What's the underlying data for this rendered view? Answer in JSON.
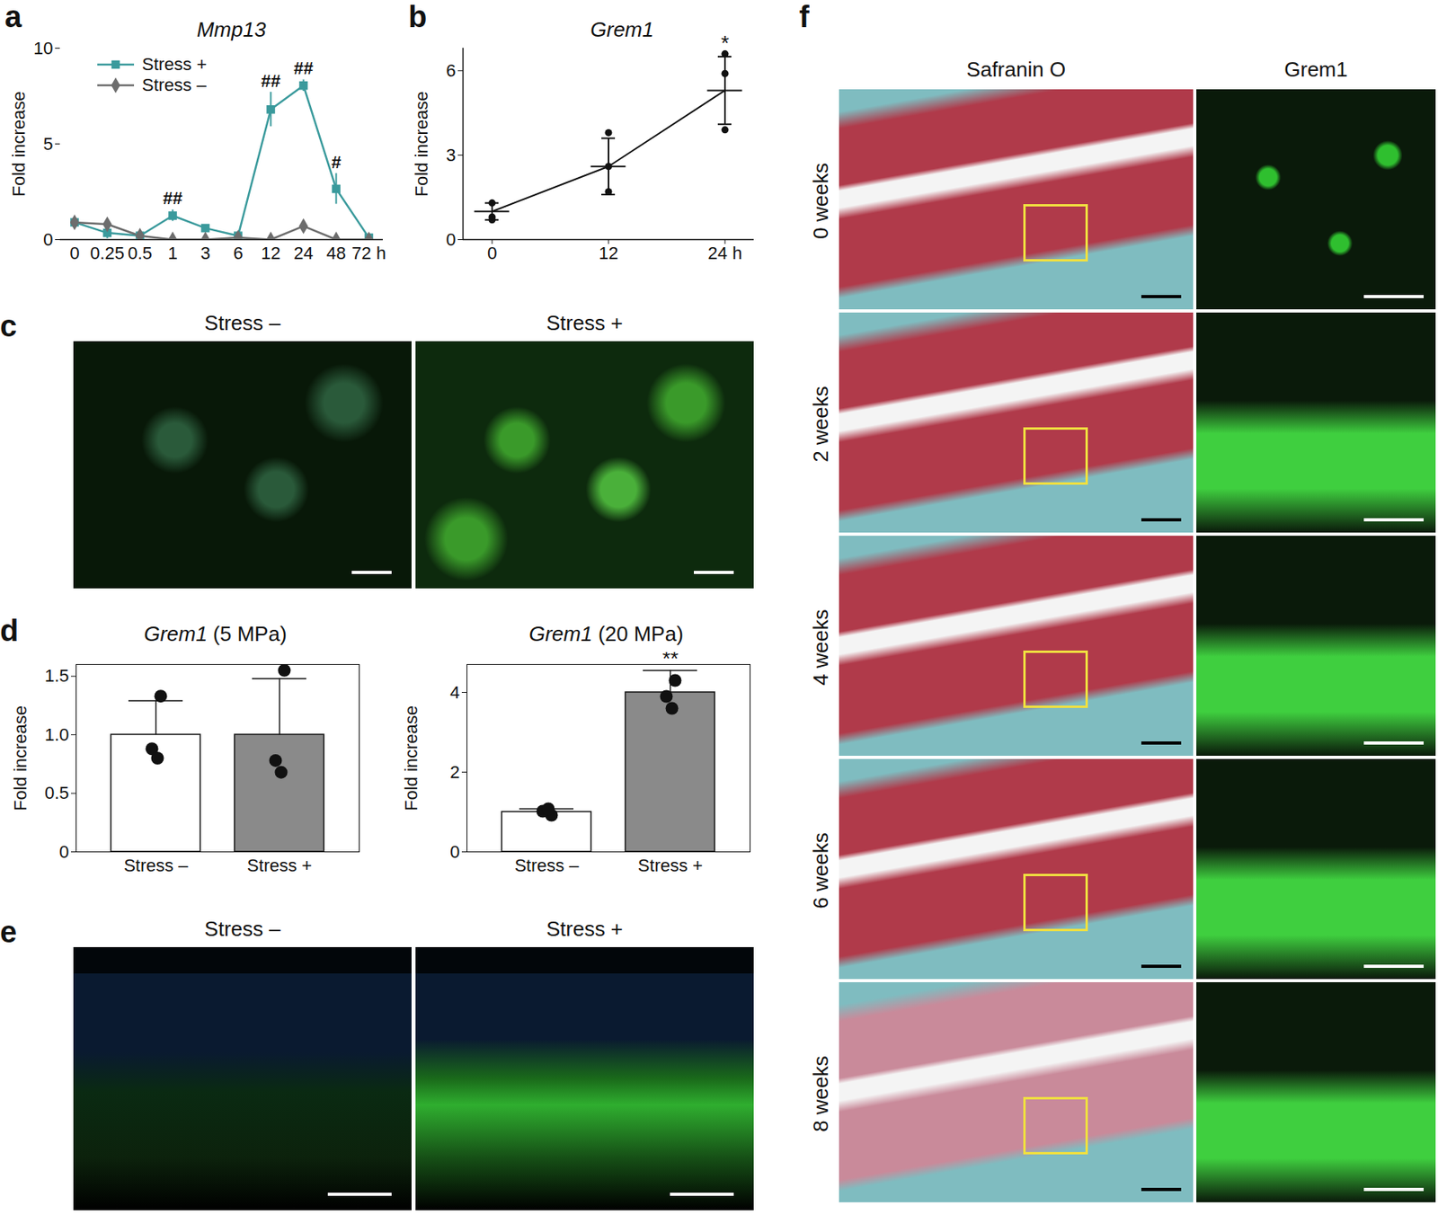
{
  "chart_data": [
    {
      "type": "line",
      "panel": "a",
      "title": "Mmp13",
      "y_label": "Fold increase",
      "categories": [
        "0",
        "0.25",
        "0.5",
        "1",
        "3",
        "6",
        "12",
        "24",
        "48",
        "72 h"
      ],
      "ylim": [
        0,
        10
      ],
      "yticks": [
        0,
        5,
        10
      ],
      "legend": "top-left",
      "series": [
        {
          "name": "Stress +",
          "color": "#3a9a9c",
          "marker": "square",
          "values": [
            0.9,
            0.35,
            0.2,
            1.25,
            0.6,
            0.2,
            6.8,
            8.05,
            2.65,
            0.1
          ],
          "errors": [
            0.15,
            0.3,
            0.1,
            0.3,
            0.1,
            0.1,
            0.9,
            0.3,
            0.8,
            0.05
          ]
        },
        {
          "name": "Stress –",
          "color": "#6d6d6d",
          "marker": "diamond",
          "values": [
            0.9,
            0.8,
            0.2,
            0,
            0,
            0.1,
            0,
            0.7,
            0,
            0
          ],
          "errors": [
            0.1,
            0.2,
            0.05,
            0,
            0,
            0.05,
            0,
            0.1,
            0,
            0
          ]
        }
      ],
      "annotations": [
        {
          "x": "1",
          "text": "##"
        },
        {
          "x": "12",
          "text": "##"
        },
        {
          "x": "24",
          "text": "##"
        },
        {
          "x": "48",
          "text": "#"
        }
      ]
    },
    {
      "type": "line",
      "panel": "b",
      "title": "Grem1",
      "y_label": "Fold increase",
      "x": [
        0,
        12,
        24
      ],
      "values": [
        1.0,
        2.6,
        5.3
      ],
      "errors": [
        0.3,
        1.0,
        1.2
      ],
      "points": [
        [
          1.3,
          0.8,
          0.7
        ],
        [
          3.8,
          2.6,
          1.7
        ],
        [
          6.6,
          5.9,
          3.9
        ]
      ],
      "color": "#111111",
      "xlim": [
        -3,
        27
      ],
      "xticks": [
        0,
        12,
        {
          "value": 24,
          "label": "24 h"
        }
      ],
      "ylim": [
        0,
        6.8
      ],
      "yticks": [
        0,
        3,
        6
      ],
      "annotations": [
        {
          "x": 24,
          "text": "*"
        }
      ]
    },
    {
      "type": "image",
      "panel": "c",
      "labels": [
        "Stress –",
        "Stress +"
      ]
    },
    {
      "type": "bar",
      "panel": "d",
      "title": "Grem1 (5 MPa)",
      "y_label": "Fold increase",
      "categories": [
        "Stress –",
        "Stress +"
      ],
      "values": [
        1.0,
        1.0
      ],
      "errors": [
        0.29,
        0.48
      ],
      "points": [
        [
          1.33,
          0.88,
          0.8
        ],
        [
          1.55,
          0.78,
          0.68
        ]
      ],
      "colors": [
        "#ffffff",
        "#8a8a8a"
      ],
      "ylim": [
        0,
        1.6
      ],
      "yticks": [
        0,
        {
          "value": 0.5,
          "label": "0.5"
        },
        {
          "value": 1,
          "label": "1.0"
        },
        {
          "value": 1.5,
          "label": "1.5"
        }
      ]
    },
    {
      "type": "bar",
      "panel": "d",
      "title": "Grem1 (20 MPa)",
      "y_label": "Fold increase",
      "categories": [
        "Stress –",
        "Stress +"
      ],
      "values": [
        1.0,
        4.0
      ],
      "errors": [
        0.08,
        0.55
      ],
      "points": [
        [
          0.92,
          1.02,
          1.08
        ],
        [
          4.3,
          3.9,
          3.6
        ]
      ],
      "colors": [
        "#ffffff",
        "#8a8a8a"
      ],
      "ylim": [
        0,
        4.7
      ],
      "yticks": [
        0,
        2,
        4
      ],
      "annotations": [
        {
          "x": "Stress +",
          "text": "**"
        }
      ]
    },
    {
      "type": "image",
      "panel": "e",
      "labels": [
        "Stress –",
        "Stress +"
      ]
    },
    {
      "type": "image",
      "panel": "f",
      "columns": [
        "Safranin O",
        "Grem1"
      ],
      "rows": [
        "0 weeks",
        "2 weeks",
        "4 weeks",
        "6 weeks",
        "8 weeks"
      ]
    }
  ]
}
